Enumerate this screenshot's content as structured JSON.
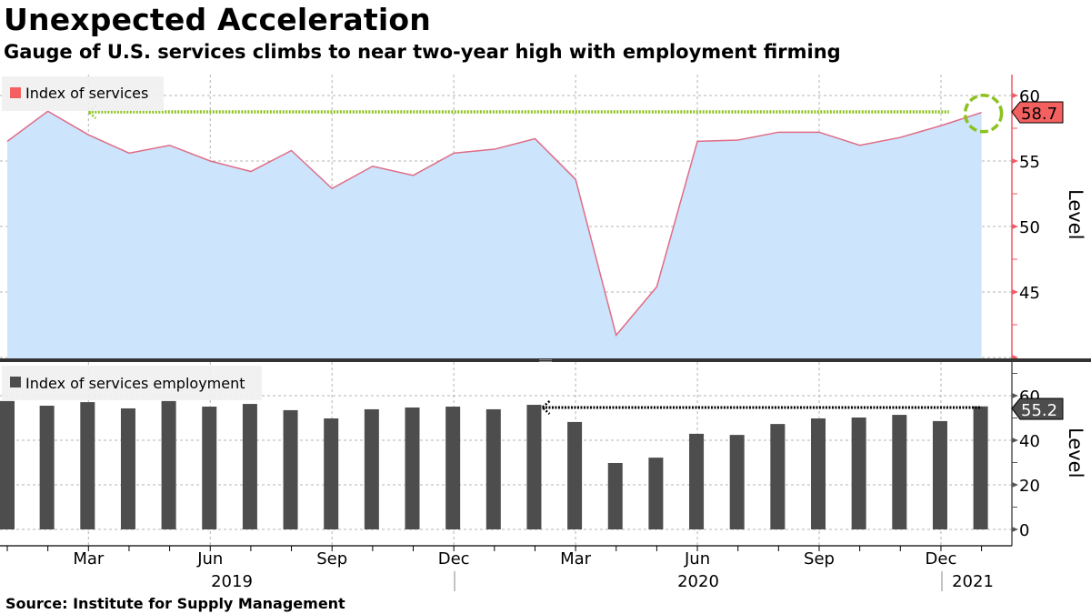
{
  "header": {
    "title": "Unexpected Acceleration",
    "subtitle": "Gauge of U.S. services climbs to near two-year high with employment firming"
  },
  "footer": {
    "source": "Source: Institute for Supply Management"
  },
  "colors": {
    "area_fill": "#cce4fc",
    "line": "#e06c86",
    "axis_top": "#f05a64",
    "label_top_bg": "#f46060",
    "bar": "#4d4d4d",
    "highlight_green": "#8cc21e",
    "grid": "#b4b4b4"
  },
  "chart_data": [
    {
      "type": "area",
      "title": "Index of services",
      "legend": [
        "Index of services"
      ],
      "ylabel": "Level",
      "ylim": [
        40,
        61
      ],
      "yticks": [
        45,
        50,
        55,
        60
      ],
      "x": [
        "2019-01",
        "2019-02",
        "2019-03",
        "2019-04",
        "2019-05",
        "2019-06",
        "2019-07",
        "2019-08",
        "2019-09",
        "2019-10",
        "2019-11",
        "2019-12",
        "2020-01",
        "2020-02",
        "2020-03",
        "2020-04",
        "2020-05",
        "2020-06",
        "2020-07",
        "2020-08",
        "2020-09",
        "2020-10",
        "2020-11",
        "2020-12",
        "2021-01"
      ],
      "values": [
        56.5,
        58.8,
        57.0,
        55.6,
        56.2,
        55.0,
        54.2,
        55.8,
        52.9,
        54.6,
        53.9,
        55.6,
        55.9,
        56.7,
        53.6,
        41.7,
        45.4,
        56.5,
        56.6,
        57.2,
        57.2,
        56.2,
        56.8,
        57.7,
        58.7
      ],
      "last_value_label": "58.7",
      "annotation": "Dotted line back to Feb 2019 high; circle on latest value",
      "grid": true
    },
    {
      "type": "bar",
      "title": "Index of services employment",
      "legend": [
        "Index of services employment"
      ],
      "ylabel": "Level",
      "ylim": [
        -8,
        70
      ],
      "yticks": [
        0,
        20,
        40,
        60
      ],
      "x": [
        "2019-01",
        "2019-02",
        "2019-03",
        "2019-04",
        "2019-05",
        "2019-06",
        "2019-07",
        "2019-08",
        "2019-09",
        "2019-10",
        "2019-11",
        "2019-12",
        "2020-01",
        "2020-02",
        "2020-03",
        "2020-04",
        "2020-05",
        "2020-06",
        "2020-07",
        "2020-08",
        "2020-09",
        "2020-10",
        "2020-11",
        "2020-12",
        "2021-01"
      ],
      "values": [
        57.6,
        55.5,
        57.1,
        54.3,
        57.6,
        55.1,
        56.3,
        53.5,
        49.8,
        53.9,
        54.7,
        55.1,
        53.9,
        55.9,
        48.2,
        29.8,
        32.2,
        42.9,
        42.4,
        47.3,
        49.8,
        50.2,
        51.4,
        48.6,
        55.2
      ],
      "last_value_label": "55.2",
      "annotation": "Dotted line back to Feb 2020 level",
      "grid": true
    }
  ],
  "x_axis": {
    "month_labels": [
      {
        "label": "Mar",
        "i": 2
      },
      {
        "label": "Jun",
        "i": 5
      },
      {
        "label": "Sep",
        "i": 8
      },
      {
        "label": "Dec",
        "i": 11
      },
      {
        "label": "Mar",
        "i": 14
      },
      {
        "label": "Jun",
        "i": 17
      },
      {
        "label": "Sep",
        "i": 20
      },
      {
        "label": "Dec",
        "i": 23
      }
    ],
    "year_labels": [
      {
        "label": "2019",
        "i": 5
      },
      {
        "label": "2020",
        "i": 17
      },
      {
        "label": "2021",
        "i": 24
      }
    ]
  },
  "panels": {
    "top": {
      "legend_label": "Index of services",
      "axis_label": "Level",
      "value_tag": "58.7",
      "ticks": [
        "45",
        "50",
        "55",
        "60"
      ]
    },
    "bottom": {
      "legend_label": "Index of services employment",
      "axis_label": "Level",
      "value_tag": "55.2",
      "ticks": [
        "0",
        "20",
        "40",
        "60"
      ]
    },
    "years": [
      "2019",
      "2020",
      "2021"
    ],
    "months": [
      "Mar",
      "Jun",
      "Sep",
      "Dec",
      "Mar",
      "Jun",
      "Sep",
      "Dec"
    ]
  }
}
